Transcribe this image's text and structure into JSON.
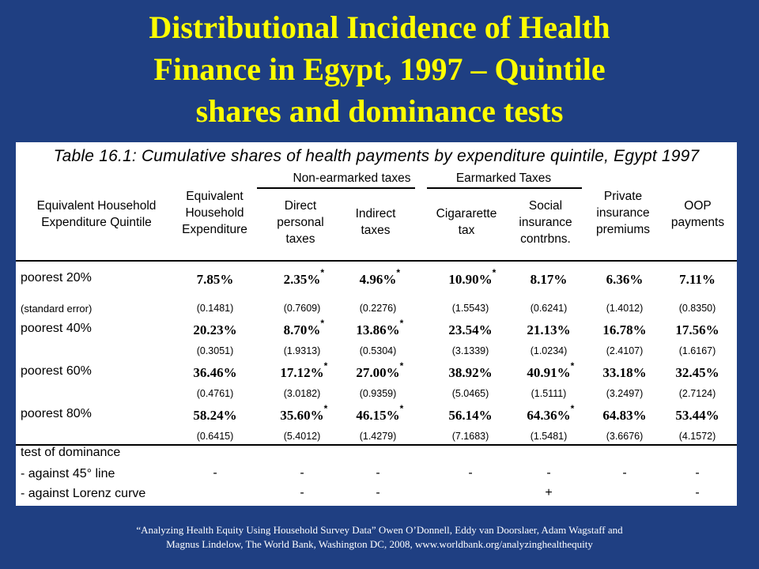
{
  "slide": {
    "title_lines": [
      "Distributional Incidence of Health",
      "Finance in Egypt, 1997 – Quintile",
      "shares and dominance tests"
    ],
    "source_lines": [
      "“Analyzing Health Equity Using Household Survey Data” Owen O’Donnell, Eddy van Doorslaer, Adam Wagstaff and",
      "Magnus Lindelow, The World Bank, Washington DC, 2008, www.worldbank.org/analyzinghealthequity"
    ]
  },
  "table": {
    "caption": "Table 16.1: Cumulative shares of health payments by expenditure quintile, Egypt 1997",
    "group_headers": {
      "non_earmarked": "Non-earmarked taxes",
      "earmarked": "Earmarked Taxes"
    },
    "col_headers": [
      "Equivalent Household\nExpenditure Quintile",
      "Equivalent\nHousehold\nExpenditure",
      "Direct\npersonal\ntaxes",
      "Indirect\ntaxes",
      "Cigararette\ntax",
      "Social\ninsurance\ncontrbns.",
      "Private\ninsurance\npremiums",
      "OOP\npayments"
    ],
    "rows": [
      {
        "label": "poorest 20%",
        "se_label": "(standard error)",
        "shares": [
          "7.85%",
          "2.35%",
          "4.96%",
          "10.90%",
          "8.17%",
          "6.36%",
          "7.11%"
        ],
        "sig": [
          "",
          "*",
          "*",
          "*",
          "",
          "",
          ""
        ],
        "se": [
          "(0.1481)",
          "(0.7609)",
          "(0.2276)",
          "(1.5543)",
          "(0.6241)",
          "(1.4012)",
          "(0.8350)"
        ]
      },
      {
        "label": "poorest 40%",
        "se_label": "",
        "shares": [
          "20.23%",
          "8.70%",
          "13.86%",
          "23.54%",
          "21.13%",
          "16.78%",
          "17.56%"
        ],
        "sig": [
          "",
          "*",
          "*",
          "",
          "",
          "",
          ""
        ],
        "se": [
          "(0.3051)",
          "(1.9313)",
          "(0.5304)",
          "(3.1339)",
          "(1.0234)",
          "(2.4107)",
          "(1.6167)"
        ]
      },
      {
        "label": "poorest 60%",
        "se_label": "",
        "shares": [
          "36.46%",
          "17.12%",
          "27.00%",
          "38.92%",
          "40.91%",
          "33.18%",
          "32.45%"
        ],
        "sig": [
          "",
          "*",
          "*",
          "",
          "*",
          "",
          ""
        ],
        "se": [
          "(0.4761)",
          "(3.0182)",
          "(0.9359)",
          "(5.0465)",
          "(1.5111)",
          "(3.2497)",
          "(2.7124)"
        ]
      },
      {
        "label": "poorest 80%",
        "se_label": "",
        "shares": [
          "58.24%",
          "35.60%",
          "46.15%",
          "56.14%",
          "64.36%",
          "64.83%",
          "53.44%"
        ],
        "sig": [
          "",
          "*",
          "*",
          "",
          "*",
          "",
          ""
        ],
        "se": [
          "(0.6415)",
          "(5.4012)",
          "(1.4279)",
          "(7.1683)",
          "(1.5481)",
          "(3.6676)",
          "(4.1572)"
        ]
      }
    ],
    "dominance": {
      "label": "test of dominance",
      "tests": [
        {
          "label": "- against 45° line",
          "values": [
            "-",
            "-",
            "-",
            "-",
            "-",
            "-",
            "-"
          ]
        },
        {
          "label": "- against Lorenz curve",
          "values": [
            "",
            "-",
            "-",
            "",
            "+",
            "",
            "-"
          ]
        }
      ]
    }
  },
  "colors": {
    "background": "#1f3f82",
    "title": "#ffff00",
    "panel": "#ffffff",
    "source_text": "#ffffff"
  }
}
